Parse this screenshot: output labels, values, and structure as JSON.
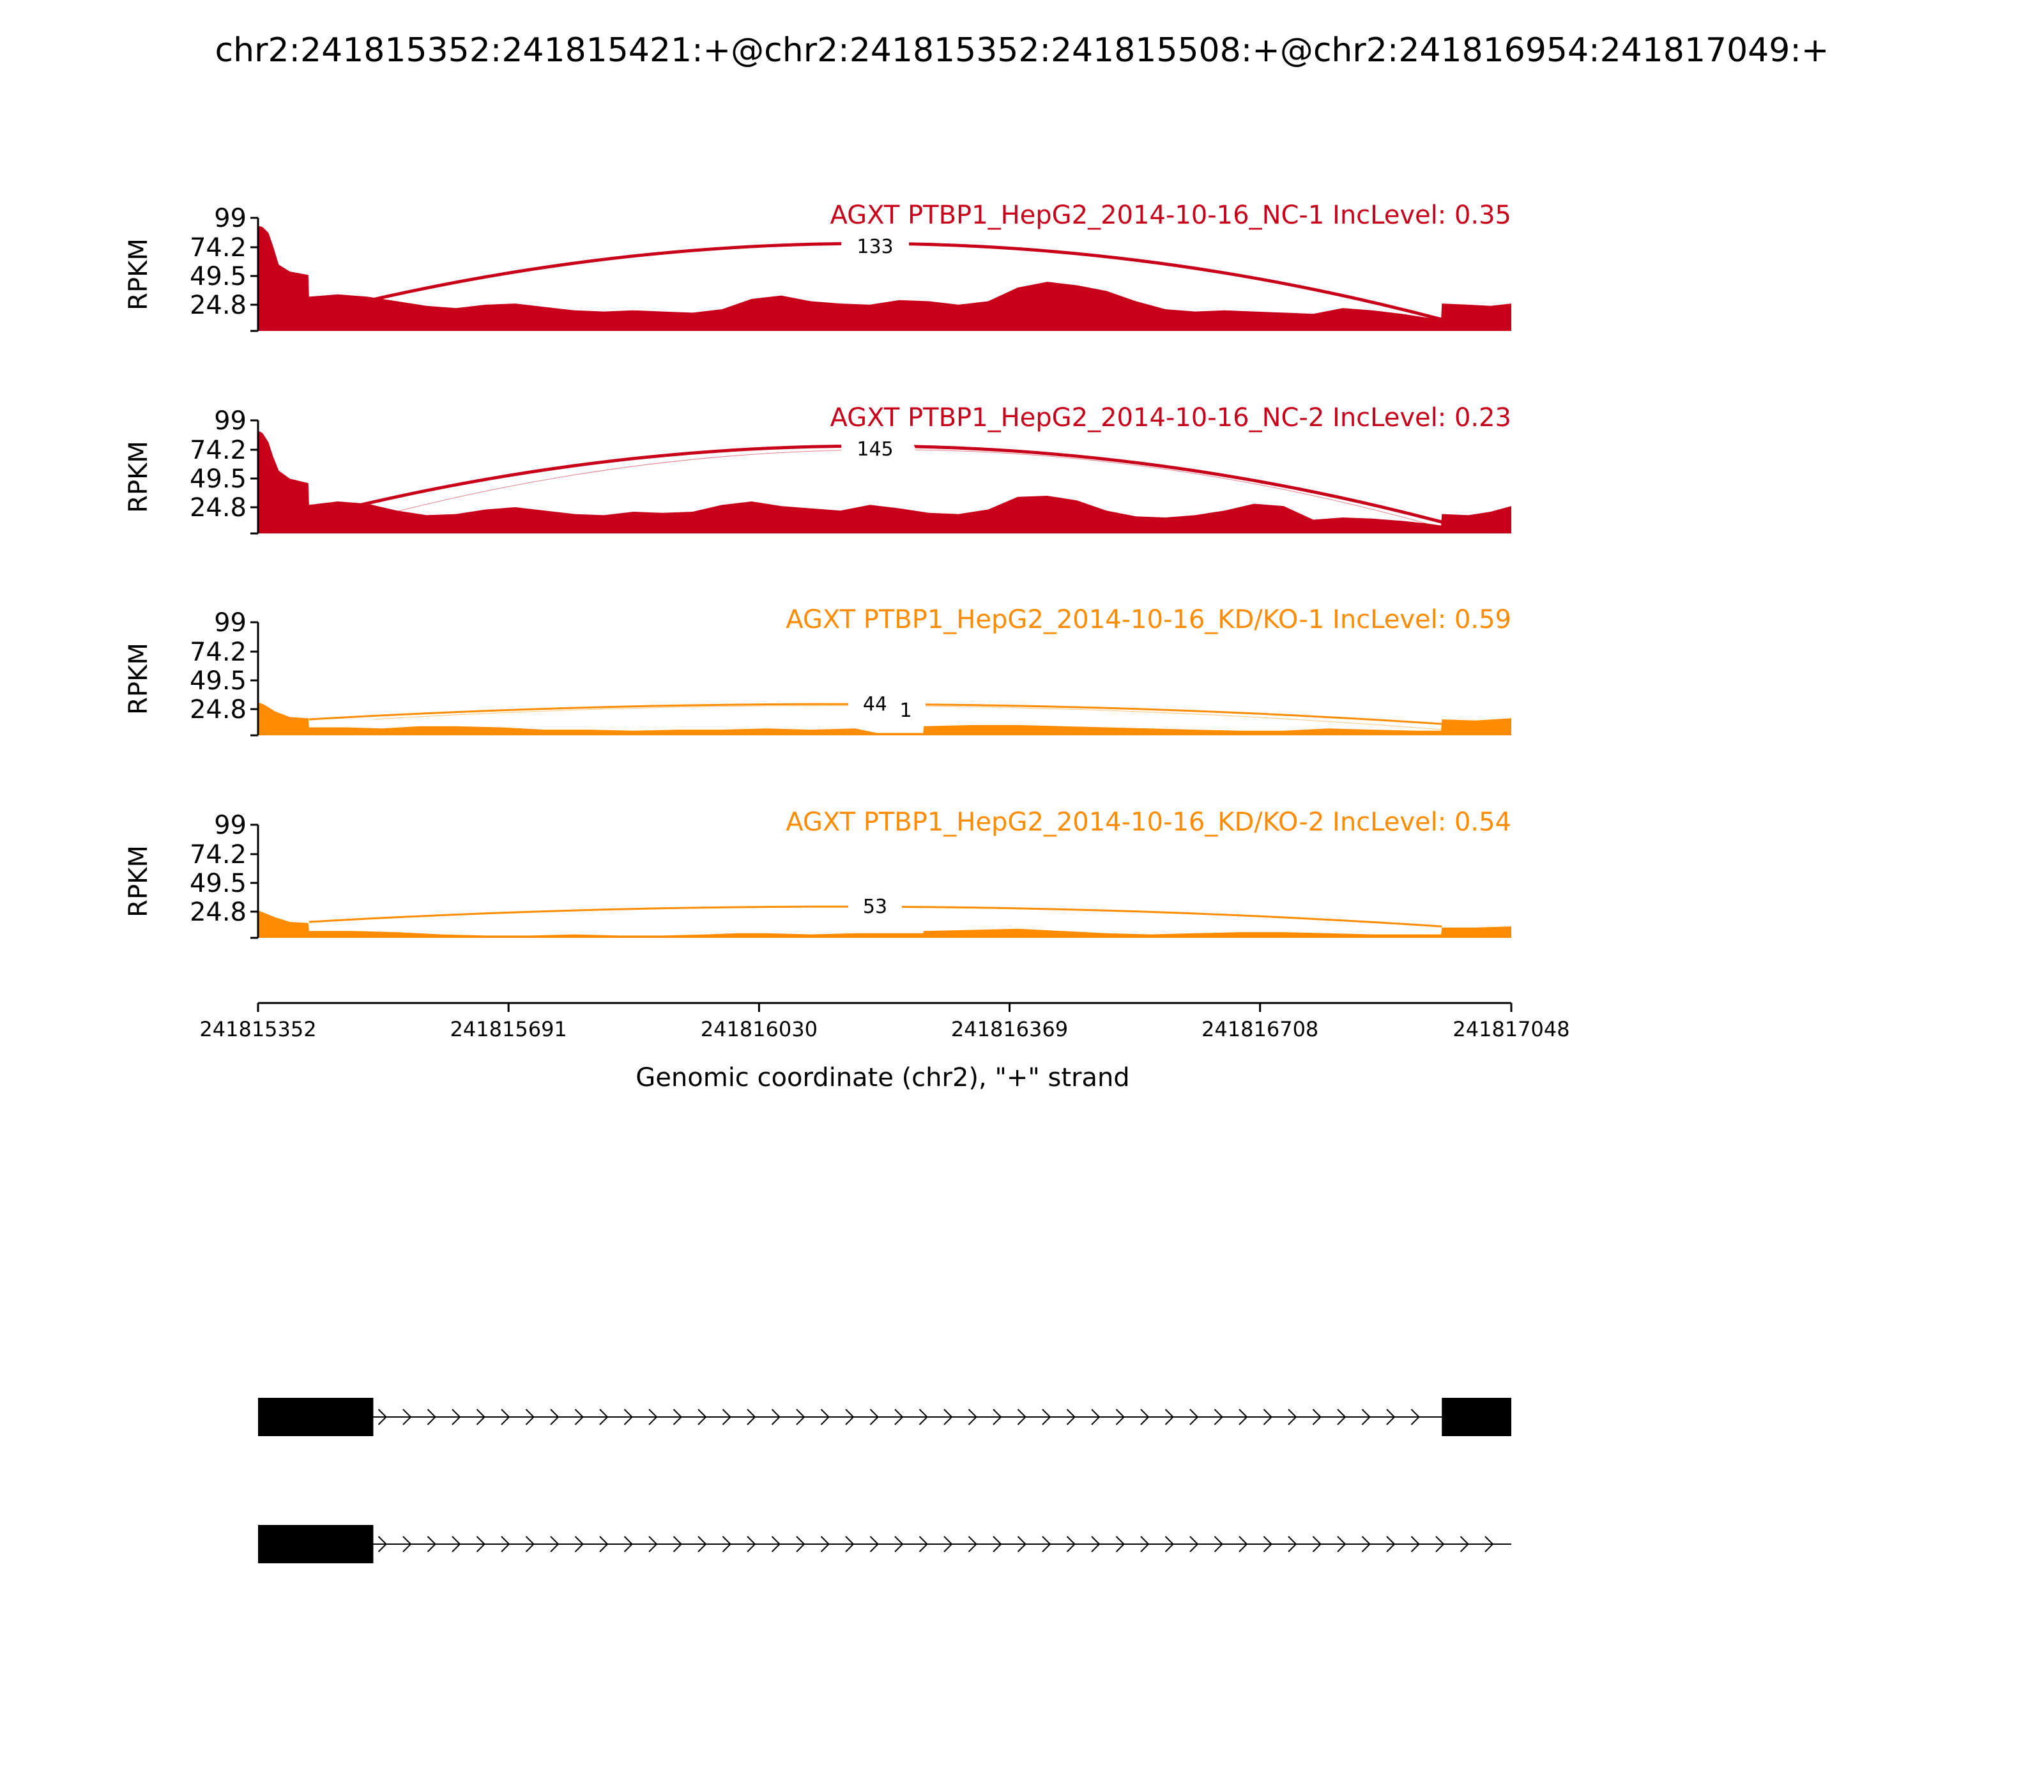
{
  "chart_data": {
    "type": "area",
    "title": "chr2:241815352:241815421:+@chr2:241815352:241815508:+@chr2:241816954:241817049:+",
    "xlabel": "Genomic coordinate (chr2), \"+\" strand",
    "ylabel": "RPKM",
    "xlim": [
      241815352,
      241817048
    ],
    "ylim": [
      0,
      99
    ],
    "x_ticks": [
      "241815352",
      "241815691",
      "241816030",
      "241816369",
      "241816708",
      "241817048"
    ],
    "y_ticks": [
      "99",
      "74.2",
      "49.5",
      "24.8"
    ],
    "series": [
      {
        "name": "AGXT PTBP1_HepG2_2014-10-16_NC-1 IncLevel: 0.35",
        "color": "#c8001a",
        "coverage": [
          [
            241815352,
            92
          ],
          [
            241815358,
            91
          ],
          [
            241815366,
            86
          ],
          [
            241815372,
            75
          ],
          [
            241815380,
            58
          ],
          [
            241815395,
            52
          ],
          [
            241815420,
            49
          ],
          [
            241815421,
            30
          ],
          [
            241815460,
            32
          ],
          [
            241815500,
            30
          ],
          [
            241815540,
            26
          ],
          [
            241815580,
            22
          ],
          [
            241815620,
            20
          ],
          [
            241815660,
            23
          ],
          [
            241815700,
            24
          ],
          [
            241815740,
            21
          ],
          [
            241815780,
            18
          ],
          [
            241815820,
            17
          ],
          [
            241815860,
            18
          ],
          [
            241815900,
            17
          ],
          [
            241815940,
            16
          ],
          [
            241815980,
            19
          ],
          [
            241816020,
            28
          ],
          [
            241816060,
            31
          ],
          [
            241816100,
            26
          ],
          [
            241816140,
            24
          ],
          [
            241816180,
            23
          ],
          [
            241816220,
            27
          ],
          [
            241816260,
            26
          ],
          [
            241816300,
            23
          ],
          [
            241816340,
            26
          ],
          [
            241816380,
            38
          ],
          [
            241816420,
            43
          ],
          [
            241816460,
            40
          ],
          [
            241816500,
            35
          ],
          [
            241816540,
            26
          ],
          [
            241816580,
            19
          ],
          [
            241816620,
            17
          ],
          [
            241816660,
            18
          ],
          [
            241816700,
            17
          ],
          [
            241816740,
            16
          ],
          [
            241816780,
            15
          ],
          [
            241816820,
            20
          ],
          [
            241816860,
            18
          ],
          [
            241816900,
            15
          ],
          [
            241816930,
            12
          ],
          [
            241816953,
            10
          ],
          [
            241816954,
            24
          ],
          [
            241816990,
            23
          ],
          [
            241817020,
            22
          ],
          [
            241817048,
            24
          ]
        ],
        "junctions": [
          {
            "from": 241815421,
            "to": 241816954,
            "count": "133"
          }
        ]
      },
      {
        "name": "AGXT PTBP1_HepG2_2014-10-16_NC-2 IncLevel: 0.23",
        "color": "#c8001a",
        "coverage": [
          [
            241815352,
            90
          ],
          [
            241815358,
            88
          ],
          [
            241815366,
            80
          ],
          [
            241815372,
            68
          ],
          [
            241815380,
            55
          ],
          [
            241815395,
            48
          ],
          [
            241815420,
            44
          ],
          [
            241815421,
            25
          ],
          [
            241815460,
            28
          ],
          [
            241815500,
            26
          ],
          [
            241815540,
            20
          ],
          [
            241815580,
            16
          ],
          [
            241815620,
            17
          ],
          [
            241815660,
            21
          ],
          [
            241815700,
            23
          ],
          [
            241815740,
            20
          ],
          [
            241815780,
            17
          ],
          [
            241815820,
            16
          ],
          [
            241815860,
            19
          ],
          [
            241815900,
            18
          ],
          [
            241815940,
            19
          ],
          [
            241815980,
            25
          ],
          [
            241816020,
            28
          ],
          [
            241816060,
            24
          ],
          [
            241816100,
            22
          ],
          [
            241816140,
            20
          ],
          [
            241816180,
            25
          ],
          [
            241816220,
            22
          ],
          [
            241816260,
            18
          ],
          [
            241816300,
            17
          ],
          [
            241816340,
            21
          ],
          [
            241816380,
            32
          ],
          [
            241816420,
            33
          ],
          [
            241816460,
            29
          ],
          [
            241816500,
            20
          ],
          [
            241816540,
            15
          ],
          [
            241816580,
            14
          ],
          [
            241816620,
            16
          ],
          [
            241816660,
            20
          ],
          [
            241816700,
            26
          ],
          [
            241816740,
            24
          ],
          [
            241816780,
            12
          ],
          [
            241816820,
            14
          ],
          [
            241816860,
            13
          ],
          [
            241816900,
            11
          ],
          [
            241816930,
            9
          ],
          [
            241816953,
            7
          ],
          [
            241816954,
            17
          ],
          [
            241816990,
            16
          ],
          [
            241817020,
            19
          ],
          [
            241817048,
            24
          ]
        ],
        "junctions": [
          {
            "from": 241815421,
            "to": 241816954,
            "count": "145"
          },
          {
            "from": 241815508,
            "to": 241816954,
            "count": ""
          }
        ]
      },
      {
        "name": "AGXT PTBP1_HepG2_2014-10-16_KD/KO-1 IncLevel: 0.59",
        "color": "#ff8c00",
        "coverage": [
          [
            241815352,
            29
          ],
          [
            241815360,
            27
          ],
          [
            241815375,
            21
          ],
          [
            241815395,
            16
          ],
          [
            241815420,
            15
          ],
          [
            241815421,
            7
          ],
          [
            241815470,
            7
          ],
          [
            241815520,
            6
          ],
          [
            241815570,
            8
          ],
          [
            241815620,
            8
          ],
          [
            241815680,
            7
          ],
          [
            241815740,
            5
          ],
          [
            241815800,
            5
          ],
          [
            241815860,
            4
          ],
          [
            241815920,
            5
          ],
          [
            241815980,
            5
          ],
          [
            241816040,
            6
          ],
          [
            241816100,
            5
          ],
          [
            241816160,
            6
          ],
          [
            241816190,
            2
          ],
          [
            241816252,
            2
          ],
          [
            241816253,
            8
          ],
          [
            241816320,
            9
          ],
          [
            241816380,
            9
          ],
          [
            241816440,
            8
          ],
          [
            241816500,
            7
          ],
          [
            241816560,
            6
          ],
          [
            241816620,
            5
          ],
          [
            241816680,
            4
          ],
          [
            241816740,
            4
          ],
          [
            241816800,
            6
          ],
          [
            241816860,
            5
          ],
          [
            241816920,
            4
          ],
          [
            241816953,
            4
          ],
          [
            241816954,
            14
          ],
          [
            241817000,
            13
          ],
          [
            241817048,
            15
          ]
        ],
        "junctions": [
          {
            "from": 241815421,
            "to": 241816954,
            "count": "44"
          },
          {
            "from": 241815508,
            "to": 241816954,
            "count": "1"
          }
        ]
      },
      {
        "name": "AGXT PTBP1_HepG2_2014-10-16_KD/KO-2 IncLevel: 0.54",
        "color": "#ff8c00",
        "coverage": [
          [
            241815352,
            24
          ],
          [
            241815360,
            22
          ],
          [
            241815375,
            18
          ],
          [
            241815395,
            14
          ],
          [
            241815420,
            13
          ],
          [
            241815421,
            6
          ],
          [
            241815480,
            6
          ],
          [
            241815540,
            5
          ],
          [
            241815600,
            3
          ],
          [
            241815660,
            2
          ],
          [
            241815720,
            2
          ],
          [
            241815780,
            3
          ],
          [
            241815840,
            2
          ],
          [
            241815900,
            2
          ],
          [
            241815960,
            3
          ],
          [
            241816000,
            4
          ],
          [
            241816040,
            4
          ],
          [
            241816100,
            3
          ],
          [
            241816160,
            4
          ],
          [
            241816190,
            4
          ],
          [
            241816252,
            4
          ],
          [
            241816253,
            6
          ],
          [
            241816320,
            7
          ],
          [
            241816380,
            8
          ],
          [
            241816440,
            6
          ],
          [
            241816500,
            4
          ],
          [
            241816560,
            3
          ],
          [
            241816620,
            4
          ],
          [
            241816680,
            5
          ],
          [
            241816740,
            5
          ],
          [
            241816800,
            4
          ],
          [
            241816860,
            3
          ],
          [
            241816920,
            3
          ],
          [
            241816953,
            3
          ],
          [
            241816954,
            9
          ],
          [
            241817000,
            9
          ],
          [
            241817048,
            10
          ]
        ],
        "junctions": [
          {
            "from": 241815421,
            "to": 241816954,
            "count": "53"
          }
        ]
      }
    ],
    "isoforms": [
      {
        "exons": [
          [
            241815352,
            241815508
          ],
          [
            241816954,
            241817048
          ]
        ],
        "intron_end": 241816954
      },
      {
        "exons": [
          [
            241815352,
            241815508
          ]
        ],
        "intron_end": 241817048
      }
    ]
  }
}
